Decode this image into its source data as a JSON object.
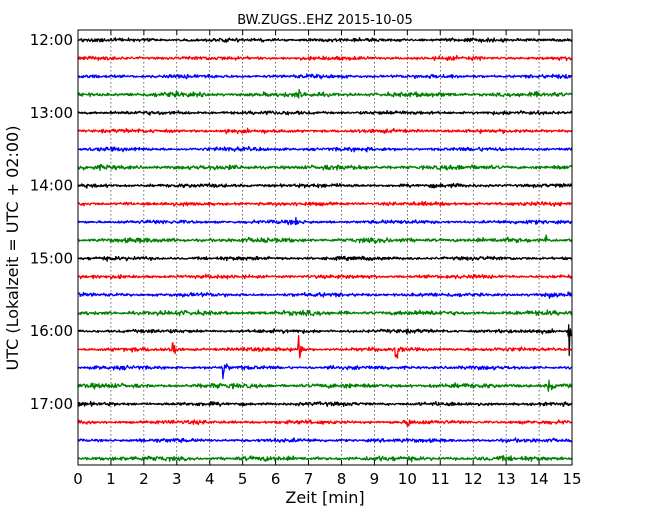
{
  "chart_data": {
    "type": "line",
    "title": "BW.ZUGS..EHZ 2015-10-05",
    "xlabel": "Zeit  [min]",
    "ylabel": "UTC (Lokalzeit = UTC + 02:00)",
    "xlim": [
      0,
      15
    ],
    "x_ticks": [
      "0",
      "1",
      "2",
      "3",
      "4",
      "5",
      "6",
      "7",
      "8",
      "9",
      "10",
      "11",
      "12",
      "13",
      "14",
      "15"
    ],
    "y_ticks": [
      "12:00",
      "13:00",
      "14:00",
      "15:00",
      "16:00",
      "17:00"
    ],
    "grid": true,
    "trace_interval_min": 15,
    "trace_colors": [
      "#000000",
      "#ff0000",
      "#0000ff",
      "#008000"
    ],
    "traces": [
      {
        "start": "12:00",
        "events": []
      },
      {
        "start": "12:15",
        "events": []
      },
      {
        "start": "12:30",
        "events": []
      },
      {
        "start": "12:45",
        "events": [
          {
            "t": 6.7,
            "amp": 0.3
          }
        ]
      },
      {
        "start": "13:00",
        "events": []
      },
      {
        "start": "13:15",
        "events": [
          {
            "t": 4.5,
            "amp": 0.25
          }
        ]
      },
      {
        "start": "13:30",
        "events": [
          {
            "t": 4.4,
            "amp": 0.25
          }
        ]
      },
      {
        "start": "13:45",
        "events": []
      },
      {
        "start": "14:00",
        "events": []
      },
      {
        "start": "14:15",
        "events": [
          {
            "t": 1.4,
            "amp": 0.35
          }
        ]
      },
      {
        "start": "14:30",
        "events": [
          {
            "t": 6.6,
            "amp": 0.35
          }
        ]
      },
      {
        "start": "14:45",
        "events": [
          {
            "t": 14.2,
            "amp": 0.45
          }
        ]
      },
      {
        "start": "15:00",
        "events": []
      },
      {
        "start": "15:15",
        "events": []
      },
      {
        "start": "15:30",
        "events": [
          {
            "t": 14.3,
            "amp": 0.2
          }
        ]
      },
      {
        "start": "15:45",
        "events": []
      },
      {
        "start": "16:00",
        "events": [
          {
            "t": 14.9,
            "amp": 1.9
          }
        ]
      },
      {
        "start": "16:15",
        "events": [
          {
            "t": 2.85,
            "amp": 1.6
          },
          {
            "t": 6.7,
            "amp": 1.9
          },
          {
            "t": 9.65,
            "amp": 1.6
          }
        ]
      },
      {
        "start": "16:30",
        "events": [
          {
            "t": 4.4,
            "amp": 1.0
          },
          {
            "t": 7.6,
            "amp": 0.35
          }
        ]
      },
      {
        "start": "16:45",
        "events": [
          {
            "t": 14.3,
            "amp": 0.9
          }
        ]
      },
      {
        "start": "17:00",
        "events": []
      },
      {
        "start": "17:15",
        "events": [
          {
            "t": 10.0,
            "amp": 0.5
          }
        ]
      },
      {
        "start": "17:30",
        "events": []
      },
      {
        "start": "17:45",
        "events": []
      }
    ]
  }
}
